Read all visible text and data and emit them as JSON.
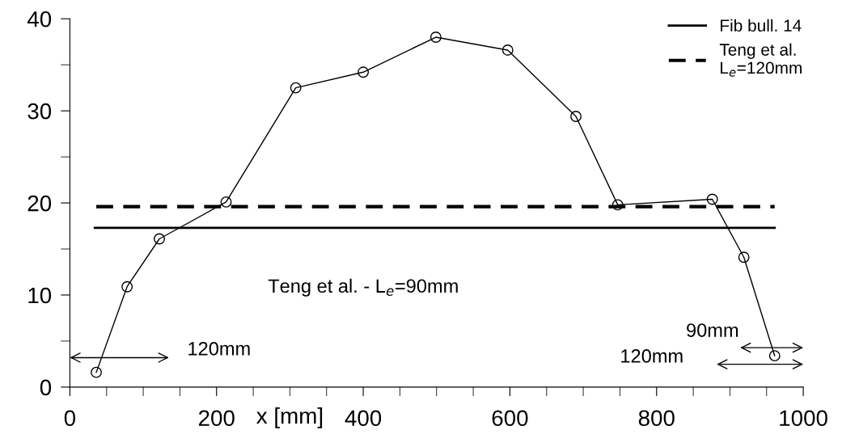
{
  "chart_data": {
    "type": "line",
    "xlabel": "x [mm]",
    "x": [
      36,
      78,
      122,
      213,
      308,
      400,
      499,
      597,
      690,
      747,
      876,
      919,
      961
    ],
    "series": [
      {
        "color": "#000000",
        "values": [
          1.6,
          10.9,
          16.1,
          20.1,
          32.5,
          34.2,
          38.0,
          36.6,
          29.4,
          19.8,
          20.4,
          14.1,
          3.4
        ]
      },
      {
        "name": "Fib bull. 14",
        "type": "line",
        "x": [
          34,
          961
        ],
        "values": [
          17.3,
          17.3
        ],
        "color": "#000000",
        "line_style": "solid",
        "marker": "none"
      },
      {
        "name": "Teng et al.\nL$_{e}$=120mm",
        "type": "line",
        "x": [
          36,
          961
        ],
        "values": [
          19.6,
          19.6
        ],
        "color": "#000000",
        "line_style": "dashed",
        "marker": "none"
      }
    ],
    "marker": "circle",
    "line_style": "solid",
    "grid": false,
    "legend": "top right",
    "xlim": [
      0,
      1000
    ],
    "ylim": [
      0,
      40
    ],
    "xticks": [
      0,
      {
        "value": 50,
        "label": null
      },
      {
        "value": 100,
        "label": null
      },
      {
        "value": 150,
        "label": null
      },
      200,
      {
        "value": 250,
        "label": null
      },
      {
        "value": 300,
        "label": null
      },
      {
        "value": 350,
        "label": null
      },
      400,
      {
        "value": 450,
        "label": null
      },
      {
        "value": 500,
        "label": null
      },
      {
        "value": 550,
        "label": null
      },
      600,
      {
        "value": 650,
        "label": null
      },
      {
        "value": 700,
        "label": null
      },
      {
        "value": 750,
        "label": null
      },
      800,
      {
        "value": 850,
        "label": null
      },
      {
        "value": 900,
        "label": null
      },
      {
        "value": 950,
        "label": null
      },
      1000
    ],
    "yticks": [
      0,
      {
        "value": 5,
        "label": null
      },
      10,
      {
        "value": 15,
        "label": null
      },
      20,
      {
        "value": 25,
        "label": null
      },
      30,
      {
        "value": 35,
        "label": null
      },
      40
    ],
    "annotations": [
      "120mm",
      "Teng et al. - L$_{e}$=90mm",
      "90mm",
      "120mm"
    ]
  }
}
